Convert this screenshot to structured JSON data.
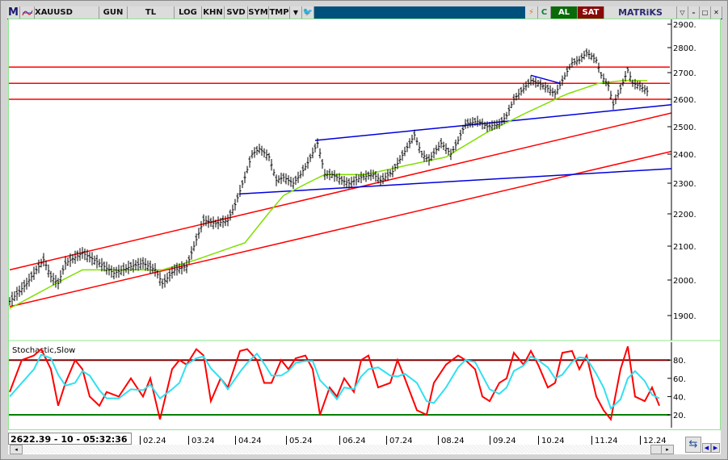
{
  "toolbar": {
    "logo": "M",
    "symbol": "XAUUSD",
    "period": "GUN",
    "currency": "TL",
    "buttons": [
      "LOG",
      "KHN",
      "SVD",
      "SYM",
      "TMP"
    ],
    "buy": "AL",
    "sell": "SAT",
    "brand": "MATRiKS"
  },
  "colors": {
    "price": "#000000",
    "ma": "#80e000",
    "hline": "#ff0000",
    "channel": "#ff0000",
    "trend": "#0000dd",
    "stochK": "#ff0000",
    "stochD": "#30e0f0",
    "ob": "#800000",
    "os": "#008000"
  },
  "price_axis": {
    "ticks": [
      2900,
      2800,
      2700,
      2600,
      2500,
      2400,
      2300,
      2200,
      2100,
      2000,
      1900
    ],
    "labels": [
      "2900.",
      "2800.",
      "2700.",
      "2600.",
      "2500.",
      "2400.",
      "2300.",
      "2200.",
      "2100.",
      "2000.",
      "1900."
    ]
  },
  "stoch": {
    "title": "Stochastic,Slow",
    "ticks": [
      "80.",
      "60.",
      "40.",
      "20."
    ],
    "overbought": 80,
    "oversold": 20,
    "t": [
      0,
      5,
      10,
      13,
      17,
      20,
      23,
      27,
      30,
      33,
      37,
      40,
      45,
      50,
      55,
      58,
      62,
      67,
      70,
      73,
      77,
      80,
      83,
      87,
      90,
      95,
      98,
      102,
      105,
      108,
      112,
      115,
      118,
      122,
      125,
      128,
      132,
      135,
      138,
      142,
      145,
      148,
      152,
      157,
      160,
      163,
      168,
      172,
      175,
      180,
      185,
      188,
      192,
      195,
      198,
      202,
      205,
      208,
      212,
      215,
      218,
      222,
      225,
      228,
      232,
      235,
      238,
      242,
      245,
      248,
      252,
      255,
      258,
      262,
      265,
      268
    ],
    "k": [
      45,
      80,
      85,
      92,
      70,
      30,
      55,
      80,
      70,
      40,
      30,
      45,
      40,
      60,
      40,
      60,
      15,
      70,
      80,
      75,
      92,
      85,
      35,
      60,
      50,
      90,
      92,
      80,
      55,
      55,
      80,
      70,
      82,
      85,
      70,
      20,
      50,
      40,
      60,
      45,
      80,
      85,
      50,
      55,
      80,
      60,
      25,
      20,
      55,
      75,
      85,
      80,
      70,
      40,
      35,
      55,
      60,
      88,
      75,
      90,
      75,
      50,
      55,
      88,
      90,
      70,
      85,
      40,
      25,
      15,
      70,
      95,
      40,
      35,
      50,
      30
    ],
    "d": [
      40,
      55,
      70,
      86,
      82,
      64,
      52,
      55,
      68,
      63,
      47,
      38,
      38,
      48,
      47,
      53,
      38,
      48,
      55,
      75,
      82,
      84,
      71,
      60,
      48,
      67,
      77,
      87,
      76,
      63,
      63,
      68,
      77,
      79,
      79,
      58,
      47,
      37,
      50,
      48,
      62,
      70,
      72,
      63,
      62,
      65,
      55,
      35,
      33,
      50,
      72,
      80,
      78,
      63,
      48,
      43,
      50,
      68,
      74,
      84,
      80,
      72,
      60,
      64,
      78,
      83,
      82,
      65,
      50,
      27,
      37,
      60,
      68,
      57,
      42,
      38
    ]
  },
  "price_keys": [
    [
      0,
      1940
    ],
    [
      7,
      1990
    ],
    [
      12,
      2040
    ],
    [
      14,
      2060
    ],
    [
      17,
      2010
    ],
    [
      20,
      1990
    ],
    [
      23,
      2050
    ],
    [
      30,
      2080
    ],
    [
      37,
      2050
    ],
    [
      43,
      2020
    ],
    [
      50,
      2040
    ],
    [
      55,
      2050
    ],
    [
      60,
      2030
    ],
    [
      63,
      1990
    ],
    [
      68,
      2030
    ],
    [
      73,
      2040
    ],
    [
      77,
      2120
    ],
    [
      80,
      2180
    ],
    [
      85,
      2170
    ],
    [
      90,
      2180
    ],
    [
      93,
      2230
    ],
    [
      97,
      2320
    ],
    [
      100,
      2400
    ],
    [
      103,
      2420
    ],
    [
      107,
      2390
    ],
    [
      110,
      2310
    ],
    [
      113,
      2320
    ],
    [
      117,
      2300
    ],
    [
      120,
      2330
    ],
    [
      123,
      2370
    ],
    [
      127,
      2440
    ],
    [
      130,
      2330
    ],
    [
      133,
      2330
    ],
    [
      137,
      2310
    ],
    [
      140,
      2300
    ],
    [
      145,
      2320
    ],
    [
      150,
      2330
    ],
    [
      153,
      2310
    ],
    [
      158,
      2340
    ],
    [
      163,
      2410
    ],
    [
      167,
      2470
    ],
    [
      170,
      2400
    ],
    [
      173,
      2380
    ],
    [
      178,
      2440
    ],
    [
      182,
      2400
    ],
    [
      185,
      2450
    ],
    [
      188,
      2510
    ],
    [
      193,
      2520
    ],
    [
      197,
      2500
    ],
    [
      202,
      2510
    ],
    [
      205,
      2540
    ],
    [
      208,
      2600
    ],
    [
      212,
      2640
    ],
    [
      215,
      2670
    ],
    [
      218,
      2660
    ],
    [
      222,
      2640
    ],
    [
      225,
      2620
    ],
    [
      228,
      2670
    ],
    [
      232,
      2740
    ],
    [
      235,
      2750
    ],
    [
      238,
      2780
    ],
    [
      242,
      2750
    ],
    [
      244,
      2690
    ],
    [
      247,
      2650
    ],
    [
      249,
      2580
    ],
    [
      252,
      2640
    ],
    [
      255,
      2710
    ],
    [
      257,
      2660
    ],
    [
      260,
      2650
    ],
    [
      263,
      2630
    ]
  ],
  "ma_keys": [
    [
      0,
      1920
    ],
    [
      30,
      2030
    ],
    [
      63,
      2030
    ],
    [
      77,
      2060
    ],
    [
      97,
      2110
    ],
    [
      113,
      2260
    ],
    [
      130,
      2330
    ],
    [
      147,
      2330
    ],
    [
      163,
      2360
    ],
    [
      180,
      2390
    ],
    [
      197,
      2480
    ],
    [
      213,
      2550
    ],
    [
      230,
      2620
    ],
    [
      243,
      2660
    ],
    [
      253,
      2670
    ],
    [
      263,
      2670
    ]
  ],
  "hlines": [
    2722,
    2660,
    2600
  ],
  "channels": [
    [
      [
        0,
        2030
      ],
      [
        273,
        2550
      ]
    ],
    [
      [
        0,
        1925
      ],
      [
        273,
        2410
      ]
    ]
  ],
  "trendlines": [
    [
      [
        95,
        2265
      ],
      [
        273,
        2350
      ]
    ],
    [
      [
        126,
        2450
      ],
      [
        273,
        2580
      ]
    ],
    [
      [
        215,
        2690
      ],
      [
        227,
        2660
      ]
    ]
  ],
  "dates": [
    "02.24",
    "03.24",
    "04.24",
    "05.24",
    "06.24",
    "07.24",
    "08.24",
    "09.24",
    "10.24",
    "11.24",
    "12.24"
  ],
  "readout": "2622.39 - 10 - 05:32:36"
}
